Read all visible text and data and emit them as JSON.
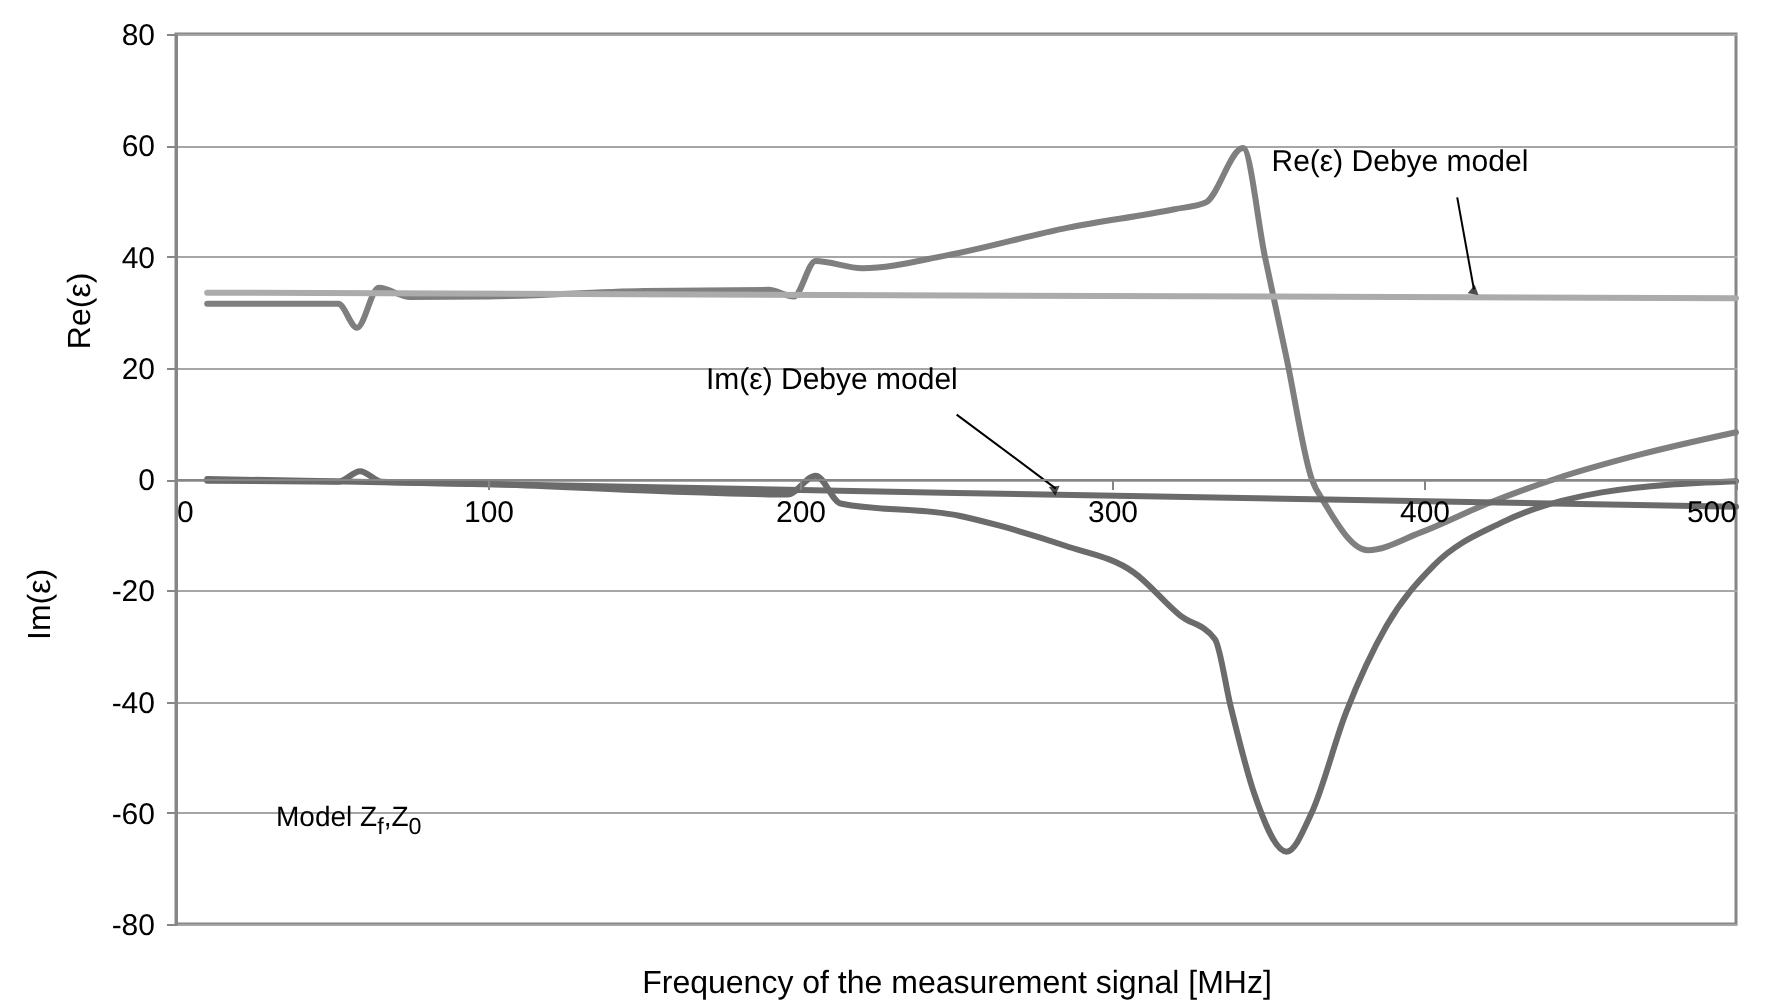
{
  "chart_data": {
    "type": "line",
    "xlabel": "Frequency of the measurement signal [MHz]",
    "ylabel": "Re(ε)",
    "xlim": [
      0,
      500
    ],
    "xticks": [
      0,
      100,
      200,
      300,
      400,
      500
    ],
    "ylim": [
      -80,
      80
    ],
    "yticks": [
      -80,
      -60,
      -40,
      -20,
      0,
      20,
      40,
      60,
      80
    ],
    "grid": "y",
    "marker": "none",
    "line_style": "solid",
    "series": [
      {
        "color": "#7f7f7f",
        "x": [
          10,
          52,
          58,
          65,
          75,
          100,
          150,
          190,
          198,
          205,
          220,
          247,
          286,
          320,
          330,
          342,
          349,
          356,
          364,
          368,
          382,
          399,
          420,
          442,
          470,
          500
        ],
        "values": [
          31.5,
          31.5,
          27.2,
          34.4,
          32.7,
          32.8,
          33.8,
          34,
          32.8,
          39.2,
          37.9,
          40.2,
          45.2,
          48.5,
          49.7,
          59.5,
          40,
          21.6,
          0,
          -4.2,
          -12.8,
          -9.6,
          -4.5,
          0,
          4.5,
          8.4
        ]
      },
      {
        "color": "#ababab",
        "x": [
          10,
          250,
          500
        ],
        "values": [
          33.5,
          33,
          32.5
        ]
      },
      {
        "color": "#6b6b6b",
        "x": [
          10,
          250,
          500
        ],
        "values": [
          0,
          -2.5,
          -5
        ]
      },
      {
        "color": "#6b6b6b",
        "x": [
          10,
          52,
          59,
          66,
          100,
          166,
          196,
          205,
          213,
          251,
          264,
          285,
          307,
          322,
          333,
          338,
          345.5,
          356,
          364,
          375,
          388,
          403,
          425,
          457,
          500
        ],
        "values": [
          -0.3,
          -0.5,
          1.4,
          -0.5,
          -0.9,
          -2.4,
          -2.8,
          0.6,
          -4.4,
          -6.6,
          -8.4,
          -12,
          -16.8,
          -24.6,
          -28.8,
          -40.8,
          -56.4,
          -67,
          -60,
          -42,
          -26.4,
          -15.6,
          -7.8,
          -2.4,
          -0.4
        ]
      }
    ],
    "annotations": [
      "Im(ε)",
      "Model Z$_{f}$,Z$_{0}$",
      {
        "text": "Re(ε) Debye model",
        "x": 416,
        "y": 33
      },
      {
        "text": "Im(ε) Debye model",
        "x": 282,
        "y": -2.8
      }
    ]
  }
}
